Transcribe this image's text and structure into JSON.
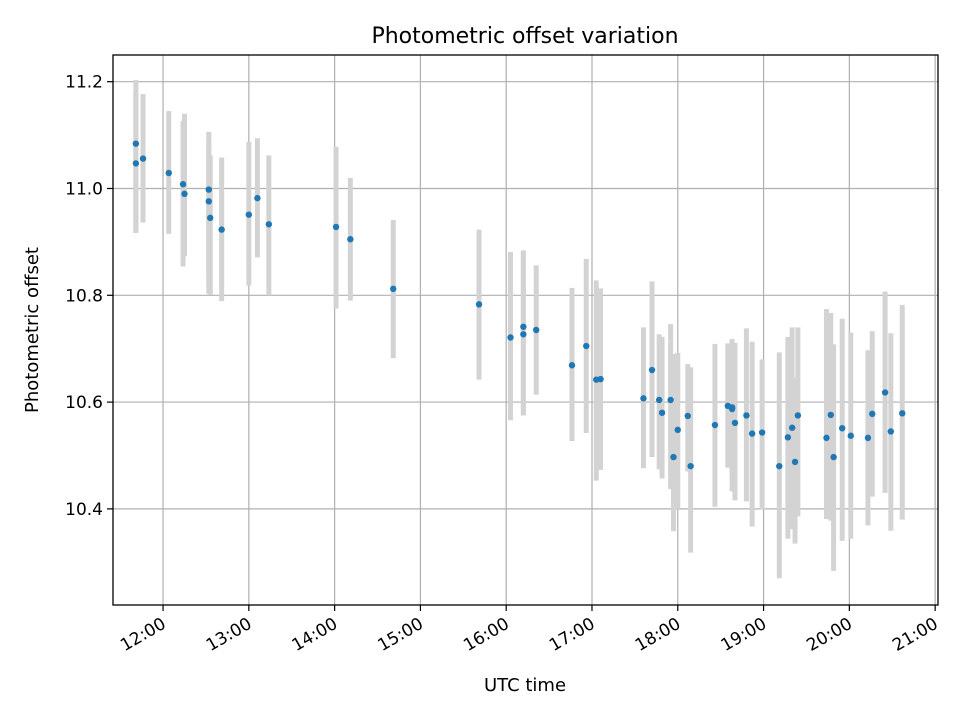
{
  "chart_data": {
    "type": "scatter",
    "title": "Photometric offset variation",
    "xlabel": "UTC time",
    "ylabel": "Photometric offset",
    "x_tick_labels": [
      "12:00",
      "13:00",
      "14:00",
      "15:00",
      "16:00",
      "17:00",
      "18:00",
      "19:00",
      "20:00",
      "21:00"
    ],
    "y_tick_labels": [
      "10.4",
      "10.6",
      "10.8",
      "11.0",
      "11.2"
    ],
    "y_ticks": [
      10.4,
      10.6,
      10.8,
      11.0,
      11.2
    ],
    "xlim": [
      "11:25",
      "21:02"
    ],
    "ylim": [
      10.22,
      11.25
    ],
    "grid": true,
    "colors": {
      "points": "#1f77b4",
      "error_bars": "#d3d3d3",
      "grid": "#b0b0b0"
    },
    "series": [
      {
        "marker": "point",
        "x": [
          "11:41",
          "11:41",
          "11:46",
          "12:04",
          "12:14",
          "12:15",
          "12:32",
          "12:32",
          "12:33",
          "12:41",
          "13:00",
          "13:06",
          "13:14",
          "14:01",
          "14:11",
          "14:41",
          "15:41",
          "16:03",
          "16:12",
          "16:12",
          "16:21",
          "16:46",
          "16:56",
          "17:03",
          "17:06",
          "17:36",
          "17:42",
          "17:47",
          "17:49",
          "17:55",
          "17:57",
          "18:00",
          "18:07",
          "18:09",
          "18:26",
          "18:35",
          "18:38",
          "18:38",
          "18:40",
          "18:48",
          "18:52",
          "18:59",
          "19:11",
          "19:17",
          "19:20",
          "19:22",
          "19:24",
          "19:44",
          "19:47",
          "19:49",
          "19:55",
          "20:01",
          "20:13",
          "20:16",
          "20:25",
          "20:29",
          "20:37"
        ],
        "y": [
          11.084,
          11.047,
          11.056,
          11.029,
          11.008,
          10.99,
          10.998,
          10.976,
          10.945,
          10.923,
          10.951,
          10.982,
          10.933,
          10.928,
          10.905,
          10.812,
          10.783,
          10.721,
          10.741,
          10.727,
          10.735,
          10.669,
          10.705,
          10.642,
          10.643,
          10.607,
          10.66,
          10.604,
          10.58,
          10.604,
          10.497,
          10.548,
          10.574,
          10.48,
          10.557,
          10.593,
          10.59,
          10.587,
          10.561,
          10.575,
          10.541,
          10.543,
          10.48,
          10.534,
          10.552,
          10.488,
          10.575,
          10.533,
          10.576,
          10.497,
          10.551,
          10.537,
          10.533,
          10.578,
          10.618,
          10.545,
          10.579
        ],
        "yerr_low": [
          10.917,
          10.917,
          10.936,
          10.915,
          10.854,
          10.873,
          10.838,
          10.803,
          10.801,
          10.789,
          10.818,
          10.871,
          10.8,
          10.775,
          10.79,
          10.682,
          10.642,
          10.566,
          10.575,
          10.575,
          10.614,
          10.527,
          10.542,
          10.453,
          10.473,
          10.476,
          10.497,
          10.474,
          10.457,
          10.437,
          10.358,
          10.4,
          10.47,
          10.318,
          10.404,
          10.477,
          10.457,
          10.433,
          10.416,
          10.414,
          10.367,
          10.399,
          10.27,
          10.344,
          10.362,
          10.335,
          10.386,
          10.381,
          10.378,
          10.284,
          10.34,
          10.344,
          10.369,
          10.423,
          10.43,
          10.359,
          10.38
        ],
        "yerr_high": [
          11.18,
          11.203,
          11.177,
          11.145,
          11.126,
          11.14,
          11.106,
          11.087,
          11.062,
          11.058,
          11.087,
          11.094,
          11.062,
          11.078,
          11.02,
          10.941,
          10.923,
          10.881,
          10.883,
          10.884,
          10.856,
          10.814,
          10.868,
          10.828,
          10.813,
          10.74,
          10.826,
          10.727,
          10.722,
          10.746,
          10.69,
          10.692,
          10.671,
          10.665,
          10.709,
          10.71,
          10.718,
          10.714,
          10.711,
          10.738,
          10.713,
          10.68,
          10.693,
          10.722,
          10.74,
          10.646,
          10.74,
          10.774,
          10.767,
          10.708,
          10.756,
          10.73,
          10.697,
          10.733,
          10.807,
          10.729,
          10.782
        ]
      }
    ]
  }
}
